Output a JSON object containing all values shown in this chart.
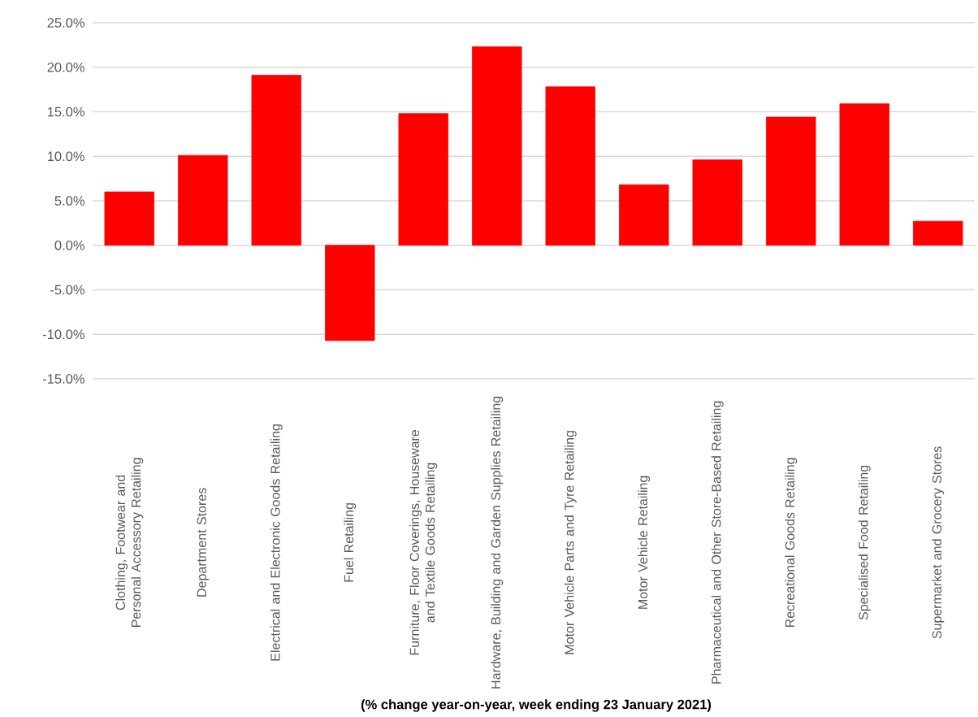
{
  "chart_data": {
    "type": "bar",
    "xlabel": "(% change year-on-year, week ending 23 January 2021)",
    "categories": [
      "Clothing, Footwear and Personal Accessory Retailing",
      "Department Stores",
      "Electrical and Electronic Goods Retailing",
      "Fuel Retailing",
      "Furniture, Floor Coverings, Houseware and Textile Goods Retailing",
      "Hardware, Building and Garden Supplies Retailing",
      "Motor Vehicle Parts and Tyre Retailing",
      "Motor Vehicle Retailing",
      "Pharmaceutical and Other Store-Based Retailing",
      "Recreational Goods Retailing",
      "Specialised Food Retailing",
      "Supermarket and Grocery Stores"
    ],
    "values": [
      6.0,
      10.1,
      19.1,
      -10.7,
      14.8,
      22.3,
      17.8,
      6.8,
      9.6,
      14.4,
      15.9,
      2.7
    ],
    "color": "#ff0000",
    "ylim": [
      -15,
      25
    ],
    "yticks": [
      {
        "value": -15,
        "label": "-15.0%"
      },
      {
        "value": -10,
        "label": "-10.0%"
      },
      {
        "value": -5,
        "label": "-5.0%"
      },
      {
        "value": 0,
        "label": "0.0%"
      },
      {
        "value": 5,
        "label": "5.0%"
      },
      {
        "value": 10,
        "label": "10.0%"
      },
      {
        "value": 15,
        "label": "15.0%"
      },
      {
        "value": 20,
        "label": "20.0%"
      },
      {
        "value": 25,
        "label": "25.0%"
      }
    ],
    "grid": "y"
  }
}
